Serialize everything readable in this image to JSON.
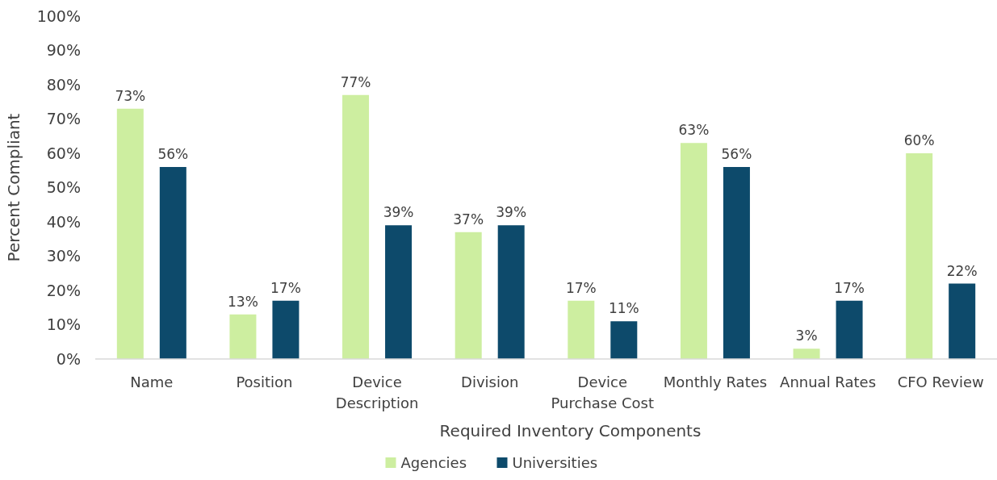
{
  "chart_data": {
    "type": "bar",
    "xlabel": "Required Inventory Components",
    "ylabel": "Percent Compliant",
    "categories": [
      "Name",
      "Position",
      "Device Description",
      "Division",
      "Device Purchase Cost",
      "Monthly Rates",
      "Annual Rates",
      "CFO Review"
    ],
    "series": [
      {
        "name": "Agencies",
        "color": "#cdeea0",
        "values": [
          73,
          13,
          77,
          37,
          17,
          63,
          3,
          60
        ],
        "value_labels": [
          "73%",
          "13%",
          "77%",
          "37%",
          "17%",
          "63%",
          "3%",
          "60%"
        ]
      },
      {
        "name": "Universities",
        "color": "#0d4a6b",
        "values": [
          56,
          17,
          39,
          39,
          11,
          56,
          17,
          22
        ],
        "value_labels": [
          "56%",
          "17%",
          "39%",
          "39%",
          "11%",
          "56%",
          "17%",
          "22%"
        ]
      }
    ],
    "ylim": [
      0,
      100
    ],
    "yticks": [
      {
        "value": 0,
        "label": "0%"
      },
      {
        "value": 10,
        "label": "10%"
      },
      {
        "value": 20,
        "label": "20%"
      },
      {
        "value": 30,
        "label": "30%"
      },
      {
        "value": 40,
        "label": "40%"
      },
      {
        "value": 50,
        "label": "50%"
      },
      {
        "value": 60,
        "label": "60%"
      },
      {
        "value": 70,
        "label": "70%"
      },
      {
        "value": 80,
        "label": "80%"
      },
      {
        "value": 90,
        "label": "90%"
      },
      {
        "value": 100,
        "label": "100%"
      }
    ],
    "grid": false,
    "legend": "bottom"
  }
}
